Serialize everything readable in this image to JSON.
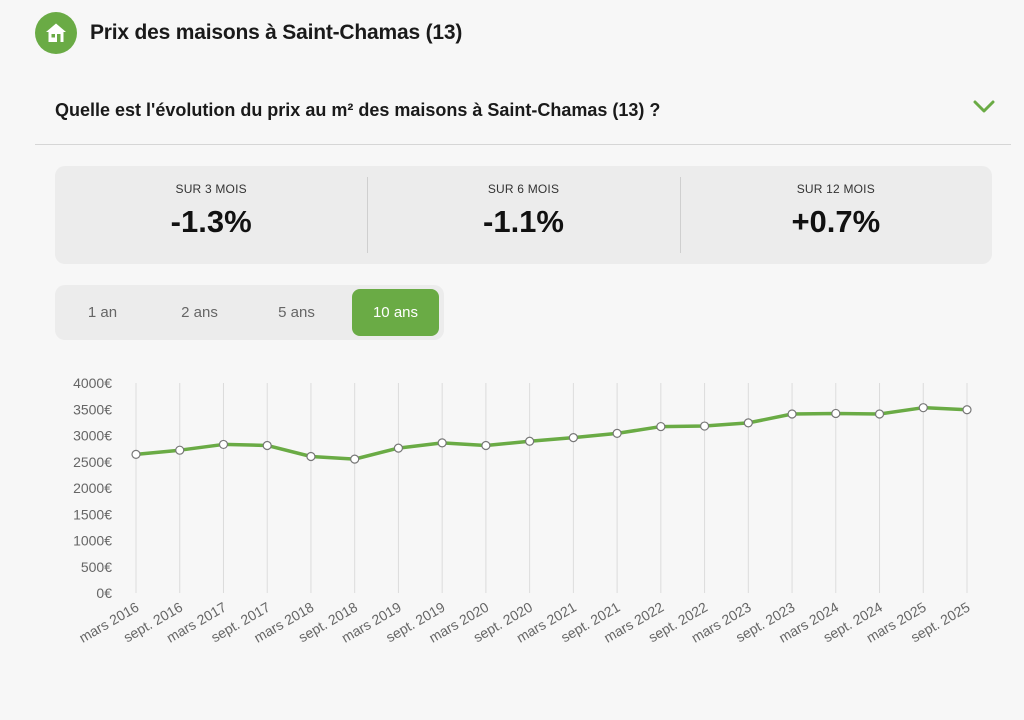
{
  "header": {
    "title": "Prix des maisons à Saint-Chamas (13)",
    "icon": "home-icon"
  },
  "question": {
    "text": "Quelle est l'évolution du prix au m² des maisons à Saint-Chamas (13) ?",
    "icon": "chevron-down-icon"
  },
  "stats": [
    {
      "label": "SUR 3 MOIS",
      "value": "-1.3%"
    },
    {
      "label": "SUR 6 MOIS",
      "value": "-1.1%"
    },
    {
      "label": "SUR 12 MOIS",
      "value": "+0.7%"
    }
  ],
  "periods": [
    {
      "label": "1 an"
    },
    {
      "label": "2 ans"
    },
    {
      "label": "5 ans"
    },
    {
      "label": "10 ans",
      "active": true
    }
  ],
  "colors": {
    "accent": "#6aab45"
  },
  "chart_data": {
    "type": "line",
    "title": "",
    "xlabel": "",
    "ylabel": "",
    "ylim": [
      0,
      4000
    ],
    "yticks": [
      0,
      500,
      1000,
      1500,
      2000,
      2500,
      3000,
      3500,
      4000
    ],
    "ytick_labels": [
      "0€",
      "500€",
      "1000€",
      "1500€",
      "2000€",
      "2500€",
      "3000€",
      "3500€",
      "4000€"
    ],
    "grid": "vertical",
    "categories": [
      "mars 2016",
      "sept. 2016",
      "mars 2017",
      "sept. 2017",
      "mars 2018",
      "sept. 2018",
      "mars 2019",
      "sept. 2019",
      "mars 2020",
      "sept. 2020",
      "mars 2021",
      "sept. 2021",
      "mars 2022",
      "sept. 2022",
      "mars 2023",
      "sept. 2023",
      "mars 2024",
      "sept. 2024",
      "mars 2025",
      "sept. 2025"
    ],
    "series": [
      {
        "values": [
          2640,
          2720,
          2830,
          2810,
          2600,
          2550,
          2760,
          2860,
          2810,
          2890,
          2960,
          3040,
          3170,
          3180,
          3240,
          3410,
          3420,
          3410,
          3530,
          3490
        ]
      }
    ]
  }
}
